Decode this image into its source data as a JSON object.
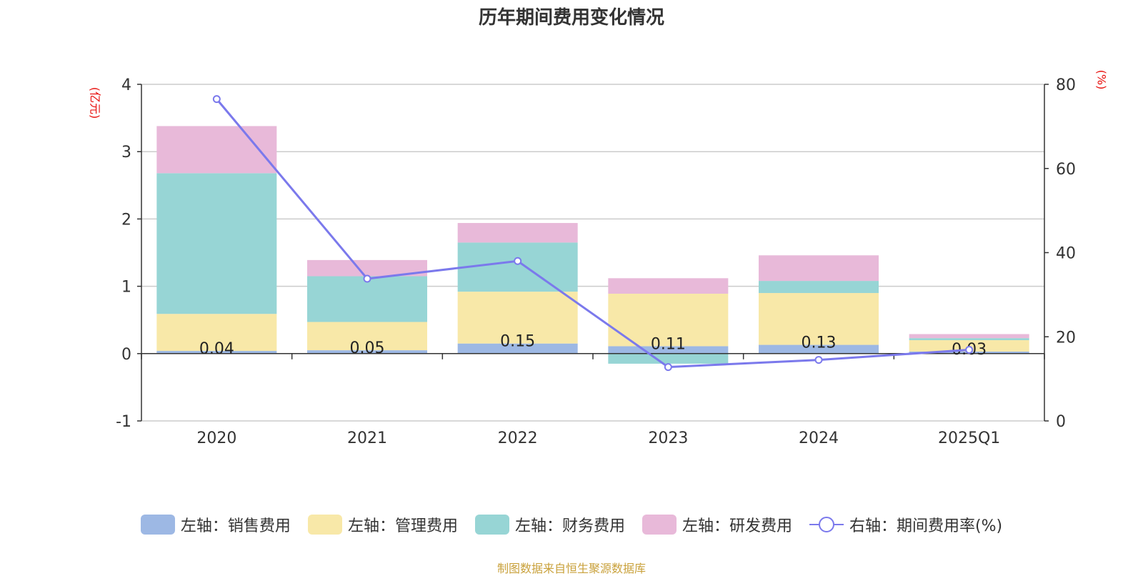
{
  "title": "历年期间费用变化情况",
  "left_unit": "(亿元)",
  "right_unit": "(%)",
  "footer": "制图数据来自恒生聚源数据库",
  "colors": {
    "sales": "#9db8e4",
    "admin": "#f8e8a8",
    "finance": "#97d5d5",
    "rd": "#e8b9d9",
    "rate": "#7b79ec",
    "axis_unit": "#e8100d",
    "footer": "#c9a13b"
  },
  "chart_data": {
    "type": "bar",
    "stacked": true,
    "categories": [
      "2020",
      "2021",
      "2022",
      "2023",
      "2024",
      "2025Q1"
    ],
    "left_axis": {
      "min": -1,
      "max": 4,
      "ticks": [
        "-1",
        "0",
        "1",
        "2",
        "3",
        "4"
      ]
    },
    "right_axis": {
      "min": 0,
      "max": 80,
      "ticks": [
        "0",
        "20",
        "40",
        "60",
        "80"
      ]
    },
    "series": [
      {
        "name": "左轴：销售费用",
        "key": "sales",
        "values": [
          0.04,
          0.05,
          0.15,
          0.11,
          0.13,
          0.03
        ],
        "labels": [
          "0.04",
          "0.05",
          "0.15",
          "0.11",
          "0.13",
          "0.03"
        ]
      },
      {
        "name": "左轴：管理费用",
        "key": "admin",
        "values": [
          0.55,
          0.42,
          0.77,
          0.78,
          0.77,
          0.17
        ]
      },
      {
        "name": "左轴：财务费用",
        "key": "finance",
        "values": [
          2.09,
          0.68,
          0.73,
          -0.15,
          0.18,
          0.03
        ]
      },
      {
        "name": "左轴：研发费用",
        "key": "rd",
        "values": [
          0.7,
          0.24,
          0.29,
          0.23,
          0.38,
          0.06
        ]
      }
    ],
    "line": {
      "name": "右轴：期间费用率(%)",
      "axis": "right",
      "values": [
        76.5,
        33.8,
        38.0,
        12.8,
        14.5,
        16.9
      ]
    },
    "grid": true,
    "legend_position": "bottom"
  }
}
